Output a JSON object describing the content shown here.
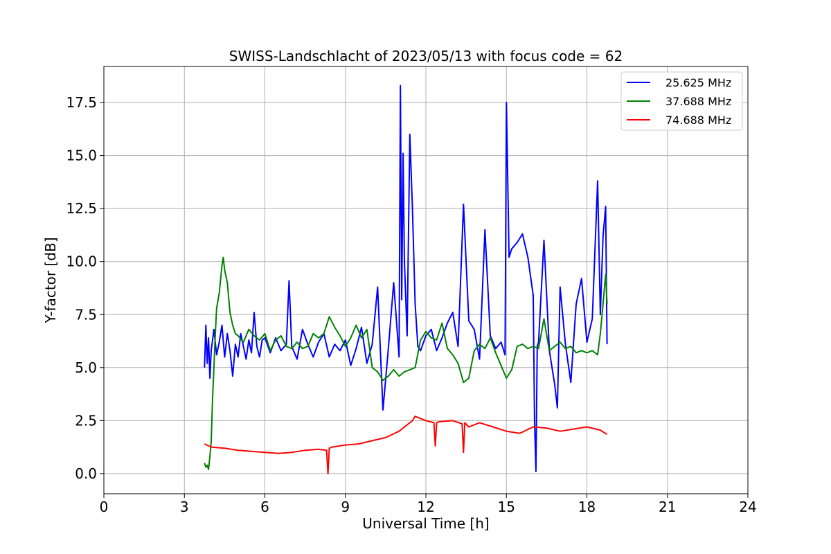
{
  "chart_data": {
    "type": "line",
    "title": "SWISS-Landschlacht of 2023/05/13 with focus code = 62",
    "xlabel": "Universal Time [h]",
    "ylabel": "Y-factor [dB]",
    "xlim": [
      0,
      24
    ],
    "ylim": [
      -0.95,
      19.2
    ],
    "xticks": [
      0,
      3,
      6,
      9,
      12,
      15,
      18,
      21,
      24
    ],
    "xtick_labels": [
      "0",
      "3",
      "6",
      "9",
      "12",
      "15",
      "18",
      "21",
      "24"
    ],
    "yticks": [
      0.0,
      2.5,
      5.0,
      7.5,
      10.0,
      12.5,
      15.0,
      17.5
    ],
    "ytick_labels": [
      "0.0",
      "2.5",
      "5.0",
      "7.5",
      "10.0",
      "12.5",
      "15.0",
      "17.5"
    ],
    "grid": true,
    "legend_position": "top-right",
    "series": [
      {
        "name": "25.625 MHz",
        "color": "#0000ff",
        "x": [
          3.75,
          3.8,
          3.85,
          3.9,
          3.95,
          4.0,
          4.1,
          4.2,
          4.3,
          4.4,
          4.5,
          4.6,
          4.7,
          4.8,
          4.9,
          5.0,
          5.1,
          5.2,
          5.3,
          5.4,
          5.5,
          5.6,
          5.7,
          5.8,
          5.9,
          6.0,
          6.2,
          6.4,
          6.6,
          6.8,
          6.9,
          7.0,
          7.2,
          7.4,
          7.6,
          7.8,
          8.0,
          8.2,
          8.4,
          8.6,
          8.8,
          9.0,
          9.2,
          9.4,
          9.6,
          9.8,
          10.0,
          10.2,
          10.4,
          10.6,
          10.8,
          11.0,
          11.05,
          11.1,
          11.15,
          11.2,
          11.3,
          11.4,
          11.5,
          11.6,
          11.7,
          11.8,
          12.0,
          12.2,
          12.4,
          12.6,
          12.8,
          13.0,
          13.2,
          13.4,
          13.6,
          13.8,
          14.0,
          14.2,
          14.4,
          14.6,
          14.8,
          14.95,
          15.0,
          15.1,
          15.2,
          15.4,
          15.6,
          15.8,
          16.0,
          16.05,
          16.1,
          16.15,
          16.2,
          16.4,
          16.6,
          16.8,
          16.9,
          17.0,
          17.2,
          17.4,
          17.6,
          17.8,
          18.0,
          18.2,
          18.3,
          18.4,
          18.5,
          18.6,
          18.7,
          18.75
        ],
        "y": [
          5.0,
          7.0,
          5.2,
          6.4,
          4.5,
          5.8,
          6.8,
          5.6,
          6.2,
          7.0,
          5.5,
          6.6,
          5.8,
          4.6,
          6.1,
          5.5,
          6.6,
          6.0,
          5.4,
          6.3,
          5.7,
          7.6,
          6.0,
          5.5,
          6.3,
          6.4,
          5.7,
          6.4,
          5.8,
          6.1,
          9.1,
          6.0,
          5.4,
          6.8,
          6.1,
          5.5,
          6.2,
          6.6,
          5.5,
          6.1,
          5.8,
          6.3,
          5.1,
          5.9,
          6.9,
          5.2,
          6.1,
          8.8,
          3.0,
          5.9,
          9.0,
          5.5,
          18.3,
          8.2,
          15.1,
          10.0,
          6.5,
          16.0,
          12.5,
          8.0,
          6.0,
          5.8,
          6.5,
          6.8,
          5.8,
          6.4,
          7.1,
          7.6,
          6.0,
          12.7,
          7.2,
          6.8,
          5.4,
          11.5,
          6.5,
          5.9,
          6.2,
          5.6,
          17.5,
          10.2,
          10.6,
          10.9,
          11.3,
          10.2,
          8.4,
          2.5,
          0.1,
          6.0,
          6.2,
          11.0,
          5.8,
          4.2,
          3.1,
          8.8,
          6.1,
          4.3,
          8.0,
          9.2,
          6.2,
          7.3,
          10.5,
          13.8,
          7.5,
          11.2,
          12.6,
          6.1
        ]
      },
      {
        "name": "37.688 MHz",
        "color": "#008000",
        "x": [
          3.75,
          3.8,
          3.85,
          3.9,
          3.95,
          4.0,
          4.05,
          4.1,
          4.15,
          4.2,
          4.3,
          4.4,
          4.45,
          4.5,
          4.6,
          4.7,
          4.8,
          4.9,
          5.0,
          5.2,
          5.4,
          5.6,
          5.8,
          6.0,
          6.2,
          6.4,
          6.6,
          6.8,
          7.0,
          7.2,
          7.4,
          7.6,
          7.8,
          8.0,
          8.2,
          8.4,
          8.6,
          8.8,
          9.0,
          9.2,
          9.4,
          9.6,
          9.8,
          10.0,
          10.2,
          10.4,
          10.6,
          10.8,
          11.0,
          11.2,
          11.4,
          11.6,
          11.8,
          12.0,
          12.2,
          12.4,
          12.6,
          12.8,
          13.0,
          13.2,
          13.4,
          13.6,
          13.8,
          14.0,
          14.2,
          14.4,
          14.6,
          14.8,
          15.0,
          15.2,
          15.4,
          15.6,
          15.8,
          16.0,
          16.2,
          16.4,
          16.6,
          16.8,
          17.0,
          17.2,
          17.4,
          17.6,
          17.8,
          18.0,
          18.2,
          18.4,
          18.5,
          18.6,
          18.7,
          18.75
        ],
        "y": [
          0.5,
          0.3,
          0.4,
          0.2,
          0.8,
          1.5,
          3.5,
          5.0,
          6.5,
          7.8,
          8.5,
          9.8,
          10.2,
          9.6,
          9.0,
          7.6,
          7.0,
          6.6,
          6.5,
          6.2,
          6.8,
          6.5,
          6.3,
          6.6,
          5.8,
          6.3,
          6.5,
          6.0,
          5.9,
          6.2,
          5.9,
          6.0,
          6.6,
          6.4,
          6.6,
          7.4,
          6.9,
          6.5,
          6.0,
          6.4,
          7.0,
          6.4,
          6.8,
          5.0,
          4.8,
          4.4,
          4.6,
          4.9,
          4.6,
          4.8,
          4.9,
          5.0,
          6.3,
          6.7,
          6.4,
          6.3,
          7.1,
          5.9,
          5.6,
          5.2,
          4.3,
          4.5,
          5.8,
          6.1,
          5.9,
          6.4,
          5.7,
          5.1,
          4.5,
          4.9,
          6.0,
          6.1,
          5.9,
          6.0,
          5.9,
          7.3,
          5.8,
          6.0,
          6.2,
          5.9,
          6.0,
          5.7,
          5.8,
          5.7,
          5.8,
          5.6,
          6.6,
          8.0,
          9.4,
          8.0
        ]
      },
      {
        "name": "74.688 MHz",
        "color": "#ff0000",
        "x": [
          3.75,
          4.0,
          4.5,
          5.0,
          5.5,
          6.0,
          6.5,
          7.0,
          7.5,
          8.0,
          8.3,
          8.35,
          8.4,
          8.5,
          9.0,
          9.5,
          10.0,
          10.5,
          11.0,
          11.5,
          11.6,
          12.0,
          12.3,
          12.35,
          12.4,
          12.5,
          13.0,
          13.35,
          13.4,
          13.45,
          13.6,
          14.0,
          14.5,
          15.0,
          15.5,
          16.0,
          16.5,
          17.0,
          17.5,
          18.0,
          18.5,
          18.75
        ],
        "y": [
          1.4,
          1.25,
          1.2,
          1.1,
          1.05,
          1.0,
          0.95,
          1.0,
          1.1,
          1.15,
          1.1,
          0.0,
          1.2,
          1.25,
          1.35,
          1.4,
          1.55,
          1.7,
          2.0,
          2.5,
          2.7,
          2.5,
          2.4,
          1.3,
          2.4,
          2.45,
          2.5,
          2.35,
          1.0,
          2.4,
          2.2,
          2.4,
          2.2,
          2.0,
          1.9,
          2.2,
          2.15,
          2.0,
          2.1,
          2.2,
          2.05,
          1.85
        ]
      }
    ]
  }
}
